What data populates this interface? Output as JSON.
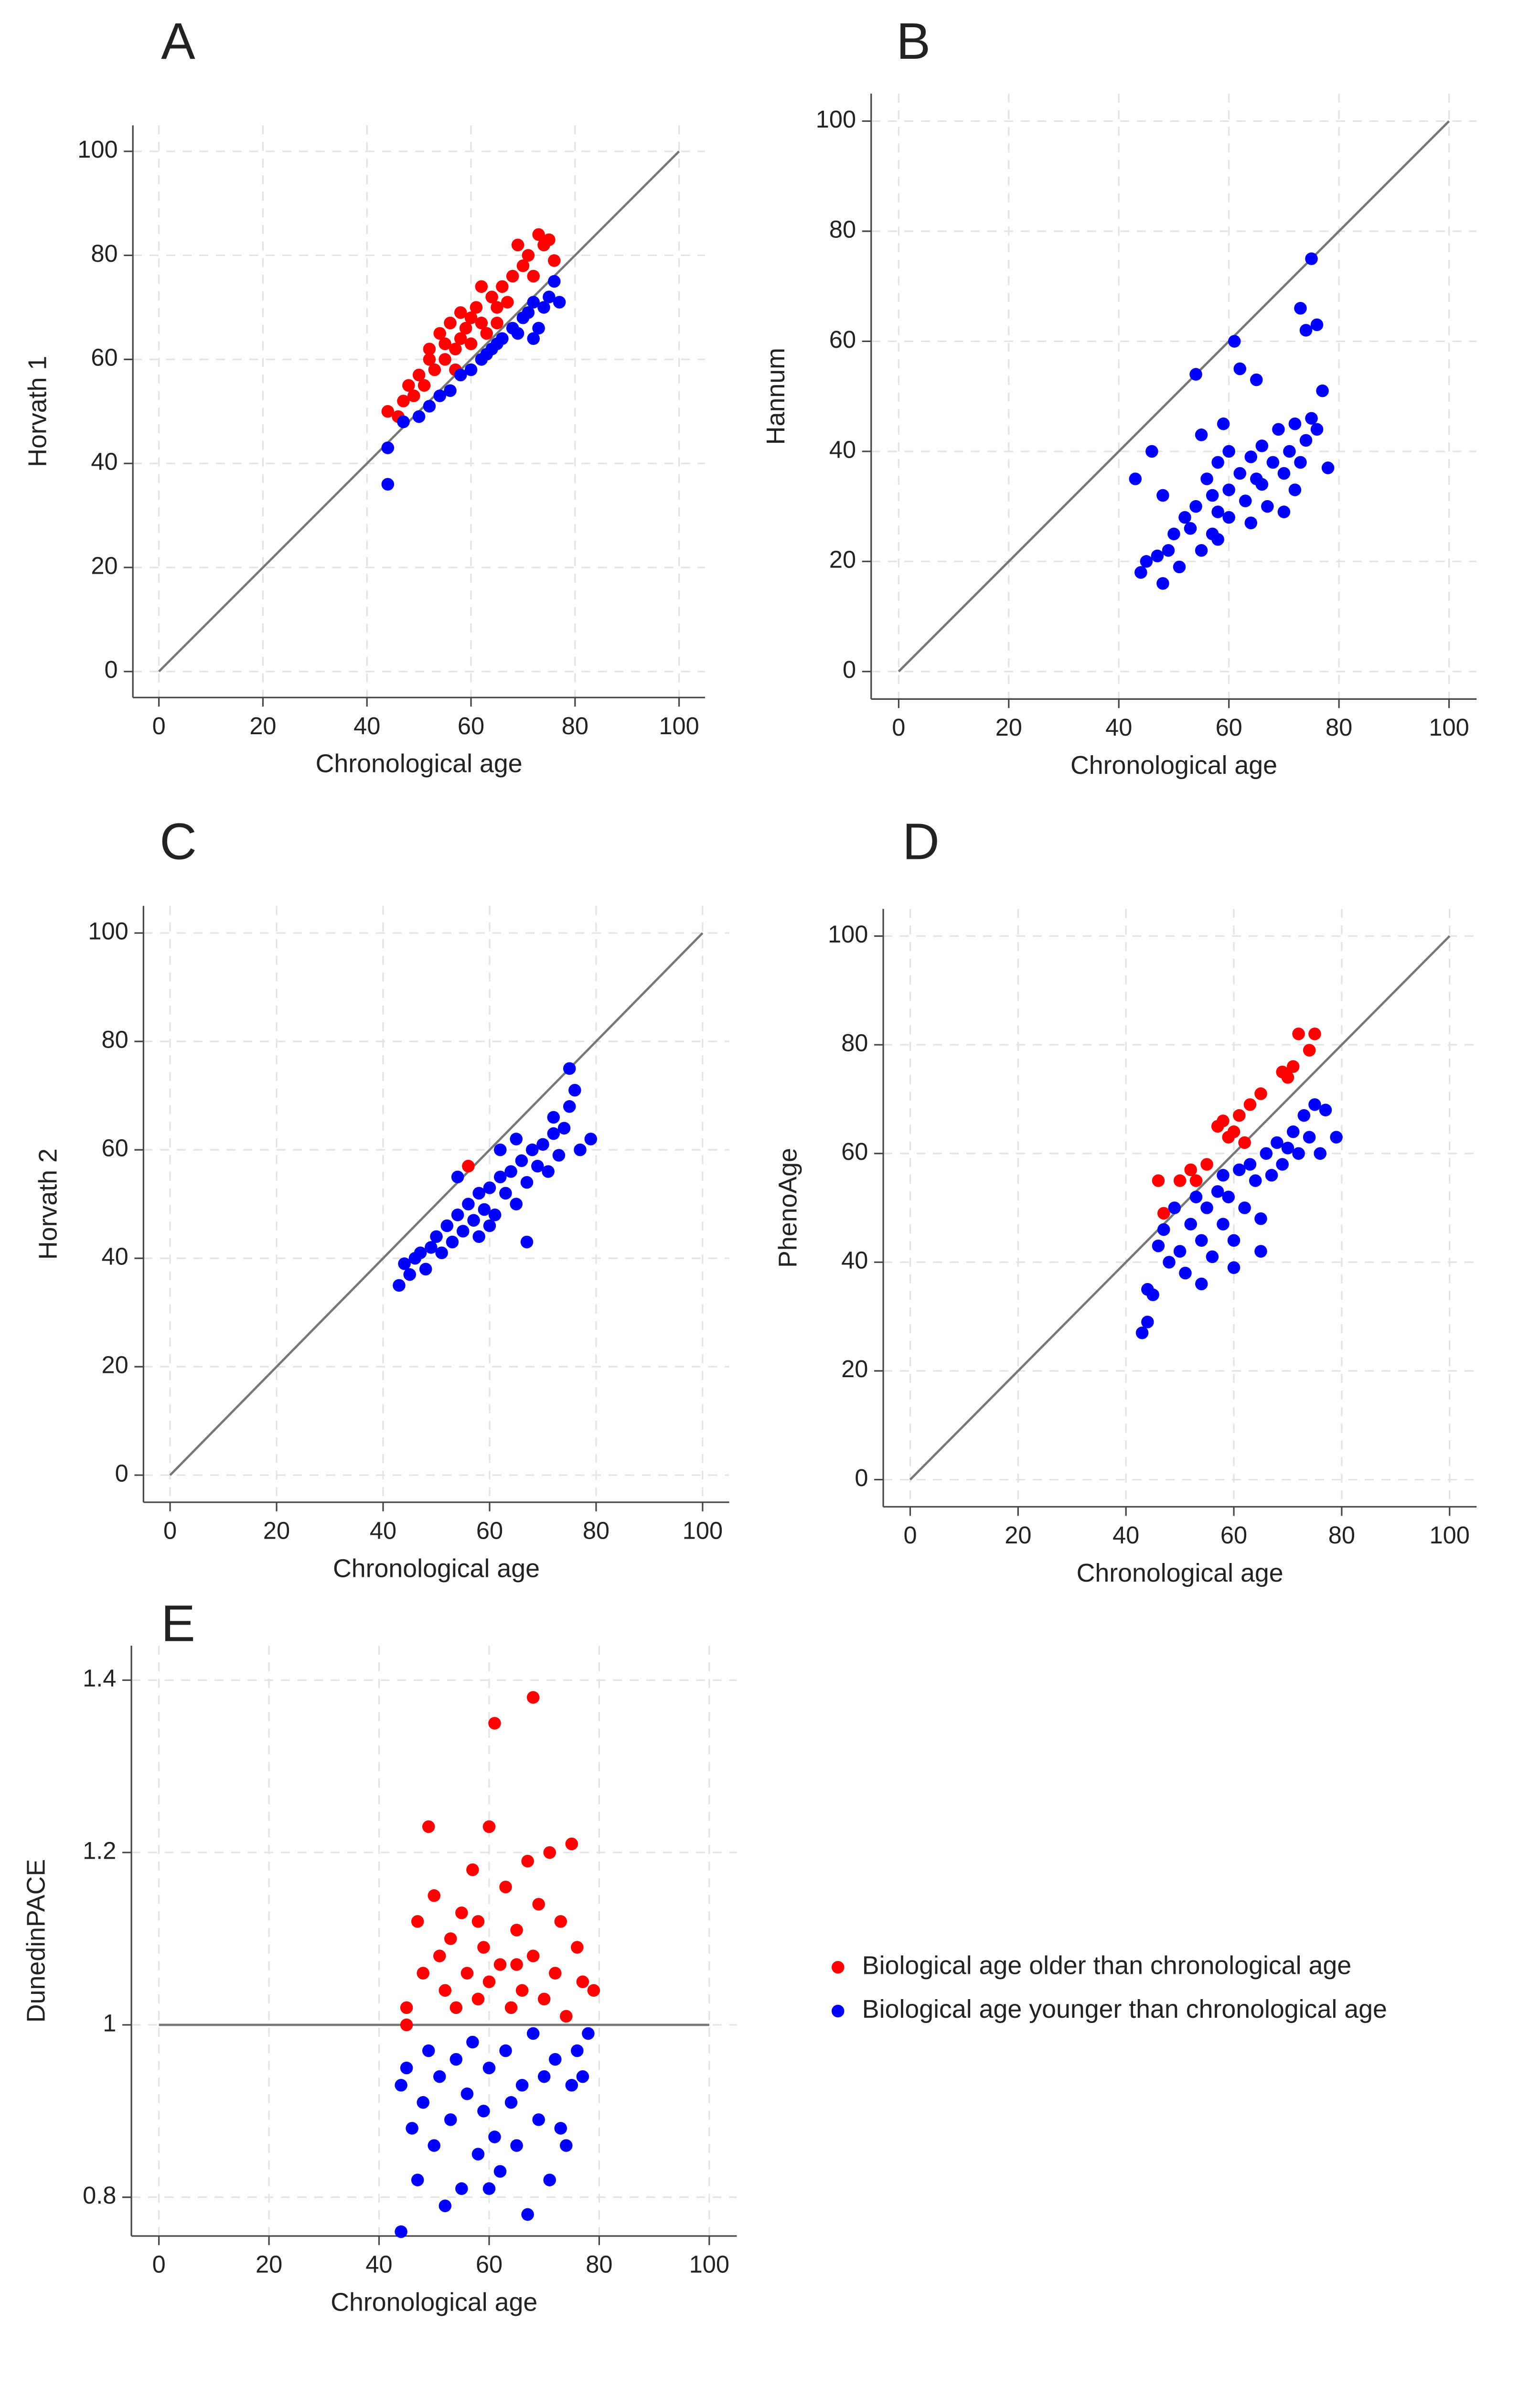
{
  "chart_data": [
    {
      "type": "scatter",
      "panel": "A",
      "x_label": "Chronological age",
      "y_label": "Horvath 1",
      "xlim": [
        -5,
        105
      ],
      "ylim": [
        -5,
        105
      ],
      "xticks": [
        0,
        20,
        40,
        60,
        80,
        100
      ],
      "yticks": [
        0,
        20,
        40,
        60,
        80,
        100
      ],
      "grid": true,
      "identity_line": true,
      "series": [
        {
          "color": "#ff0000",
          "x": [
            44,
            46,
            47,
            48,
            49,
            50,
            51,
            52,
            52,
            53,
            54,
            55,
            55,
            56,
            57,
            58,
            58,
            59,
            60,
            60,
            61,
            62,
            63,
            64,
            65,
            66,
            67,
            68,
            69,
            70,
            71,
            72,
            73,
            74,
            75,
            76,
            62,
            57,
            65
          ],
          "values": [
            50,
            49,
            52,
            55,
            53,
            57,
            55,
            60,
            62,
            58,
            65,
            60,
            63,
            67,
            62,
            64,
            69,
            66,
            63,
            68,
            70,
            67,
            65,
            72,
            70,
            74,
            71,
            76,
            82,
            78,
            80,
            76,
            84,
            82,
            83,
            79,
            74,
            58,
            67
          ]
        },
        {
          "color": "#0000ff",
          "x": [
            44,
            44,
            47,
            50,
            52,
            54,
            56,
            58,
            60,
            62,
            63,
            65,
            66,
            68,
            69,
            70,
            71,
            72,
            73,
            74,
            75,
            76,
            77,
            72,
            64
          ],
          "values": [
            43,
            36,
            48,
            49,
            51,
            53,
            54,
            57,
            58,
            60,
            61,
            63,
            64,
            66,
            65,
            68,
            69,
            71,
            66,
            70,
            72,
            75,
            71,
            64,
            62
          ]
        }
      ]
    },
    {
      "type": "scatter",
      "panel": "B",
      "x_label": "Chronological age",
      "y_label": "Hannum",
      "xlim": [
        -5,
        105
      ],
      "ylim": [
        -5,
        105
      ],
      "xticks": [
        0,
        20,
        40,
        60,
        80,
        100
      ],
      "yticks": [
        0,
        20,
        40,
        60,
        80,
        100
      ],
      "grid": true,
      "identity_line": true,
      "series": [
        {
          "color": "#0000ff",
          "x": [
            43,
            44,
            45,
            46,
            47,
            48,
            48,
            49,
            50,
            51,
            52,
            53,
            54,
            54,
            55,
            55,
            56,
            57,
            57,
            58,
            58,
            59,
            60,
            60,
            61,
            62,
            62,
            63,
            64,
            64,
            65,
            66,
            66,
            67,
            68,
            69,
            70,
            70,
            71,
            72,
            72,
            73,
            73,
            74,
            74,
            75,
            75,
            76,
            76,
            77,
            78,
            65,
            60,
            58
          ],
          "values": [
            35,
            18,
            20,
            40,
            21,
            16,
            32,
            22,
            25,
            19,
            28,
            26,
            54,
            30,
            43,
            22,
            35,
            32,
            25,
            38,
            29,
            45,
            33,
            28,
            60,
            36,
            55,
            31,
            39,
            27,
            53,
            34,
            41,
            30,
            38,
            44,
            36,
            29,
            40,
            33,
            45,
            66,
            38,
            42,
            62,
            75,
            46,
            44,
            63,
            51,
            37,
            35,
            40,
            24
          ]
        }
      ]
    },
    {
      "type": "scatter",
      "panel": "C",
      "x_label": "Chronological age",
      "y_label": "Horvath 2",
      "xlim": [
        -5,
        105
      ],
      "ylim": [
        -5,
        105
      ],
      "xticks": [
        0,
        20,
        40,
        60,
        80,
        100
      ],
      "yticks": [
        0,
        20,
        40,
        60,
        80,
        100
      ],
      "grid": true,
      "identity_line": true,
      "series": [
        {
          "color": "#0000ff",
          "x": [
            43,
            44,
            45,
            46,
            47,
            48,
            49,
            50,
            51,
            52,
            53,
            54,
            54,
            55,
            56,
            57,
            58,
            58,
            59,
            60,
            61,
            62,
            62,
            63,
            64,
            65,
            66,
            67,
            67,
            68,
            69,
            70,
            71,
            72,
            72,
            73,
            74,
            75,
            75,
            76,
            77,
            79,
            65,
            60
          ],
          "values": [
            35,
            39,
            37,
            40,
            41,
            38,
            42,
            44,
            41,
            46,
            43,
            48,
            55,
            45,
            50,
            47,
            52,
            44,
            49,
            53,
            48,
            55,
            60,
            52,
            56,
            50,
            58,
            54,
            43,
            60,
            57,
            61,
            56,
            63,
            66,
            59,
            64,
            75,
            68,
            71,
            60,
            62,
            62,
            46
          ]
        },
        {
          "color": "#ff0000",
          "x": [
            56
          ],
          "values": [
            57
          ]
        }
      ]
    },
    {
      "type": "scatter",
      "panel": "D",
      "x_label": "Chronological age",
      "y_label": "PhenoAge",
      "xlim": [
        -5,
        105
      ],
      "ylim": [
        -5,
        105
      ],
      "xticks": [
        0,
        20,
        40,
        60,
        80,
        100
      ],
      "yticks": [
        0,
        20,
        40,
        60,
        80,
        100
      ],
      "grid": true,
      "identity_line": true,
      "series": [
        {
          "color": "#0000ff",
          "x": [
            43,
            44,
            44,
            45,
            46,
            47,
            48,
            49,
            50,
            51,
            52,
            53,
            54,
            54,
            55,
            56,
            57,
            58,
            58,
            59,
            60,
            61,
            62,
            63,
            64,
            65,
            66,
            67,
            68,
            69,
            70,
            71,
            72,
            73,
            74,
            75,
            76,
            77,
            79,
            65,
            60
          ],
          "values": [
            27,
            35,
            29,
            34,
            43,
            46,
            40,
            50,
            42,
            38,
            47,
            52,
            36,
            44,
            50,
            41,
            53,
            47,
            56,
            52,
            44,
            57,
            50,
            58,
            55,
            48,
            60,
            56,
            62,
            58,
            61,
            64,
            60,
            67,
            63,
            69,
            60,
            68,
            63,
            42,
            39
          ]
        },
        {
          "color": "#ff0000",
          "x": [
            46,
            47,
            50,
            52,
            53,
            55,
            57,
            58,
            59,
            60,
            61,
            63,
            65,
            69,
            70,
            71,
            72,
            74,
            75,
            62
          ],
          "values": [
            55,
            49,
            55,
            57,
            55,
            58,
            65,
            66,
            63,
            64,
            67,
            69,
            71,
            75,
            74,
            76,
            82,
            79,
            82,
            62
          ]
        }
      ]
    },
    {
      "type": "scatter",
      "panel": "E",
      "x_label": "Chronological age",
      "y_label": "DunedinPACE",
      "xlim": [
        -5,
        105
      ],
      "ylim": [
        0.755,
        1.44
      ],
      "xticks": [
        0,
        20,
        40,
        60,
        80,
        100
      ],
      "yticks": [
        0.8,
        1,
        1.2,
        1.4
      ],
      "grid": true,
      "hline": 1,
      "series": [
        {
          "name": "Biological age older than chronological age",
          "color": "#ff0000",
          "x": [
            45,
            45,
            47,
            48,
            49,
            50,
            51,
            52,
            53,
            54,
            55,
            56,
            57,
            58,
            59,
            60,
            60,
            61,
            62,
            63,
            64,
            65,
            66,
            67,
            68,
            68,
            69,
            70,
            71,
            72,
            73,
            74,
            75,
            76,
            77,
            79,
            58,
            65
          ],
          "values": [
            1.0,
            1.02,
            1.12,
            1.06,
            1.23,
            1.15,
            1.08,
            1.04,
            1.1,
            1.02,
            1.13,
            1.06,
            1.18,
            1.03,
            1.09,
            1.23,
            1.05,
            1.35,
            1.07,
            1.16,
            1.02,
            1.11,
            1.04,
            1.19,
            1.38,
            1.08,
            1.14,
            1.03,
            1.2,
            1.06,
            1.12,
            1.01,
            1.21,
            1.09,
            1.05,
            1.04,
            1.12,
            1.07
          ]
        },
        {
          "name": "Biological age younger than chronological age",
          "color": "#0000ff",
          "x": [
            44,
            44,
            45,
            46,
            47,
            48,
            49,
            50,
            51,
            52,
            53,
            54,
            55,
            56,
            57,
            58,
            59,
            60,
            61,
            62,
            63,
            64,
            65,
            66,
            67,
            68,
            69,
            70,
            71,
            72,
            73,
            74,
            75,
            76,
            77,
            78,
            60
          ],
          "values": [
            0.93,
            0.76,
            0.95,
            0.88,
            0.82,
            0.91,
            0.97,
            0.86,
            0.94,
            0.79,
            0.89,
            0.96,
            0.81,
            0.92,
            0.98,
            0.85,
            0.9,
            0.95,
            0.87,
            0.83,
            0.97,
            0.91,
            0.86,
            0.93,
            0.78,
            0.99,
            0.89,
            0.94,
            0.82,
            0.96,
            0.88,
            0.86,
            0.93,
            0.97,
            0.94,
            0.99,
            0.81
          ]
        }
      ],
      "legend": "right"
    }
  ]
}
